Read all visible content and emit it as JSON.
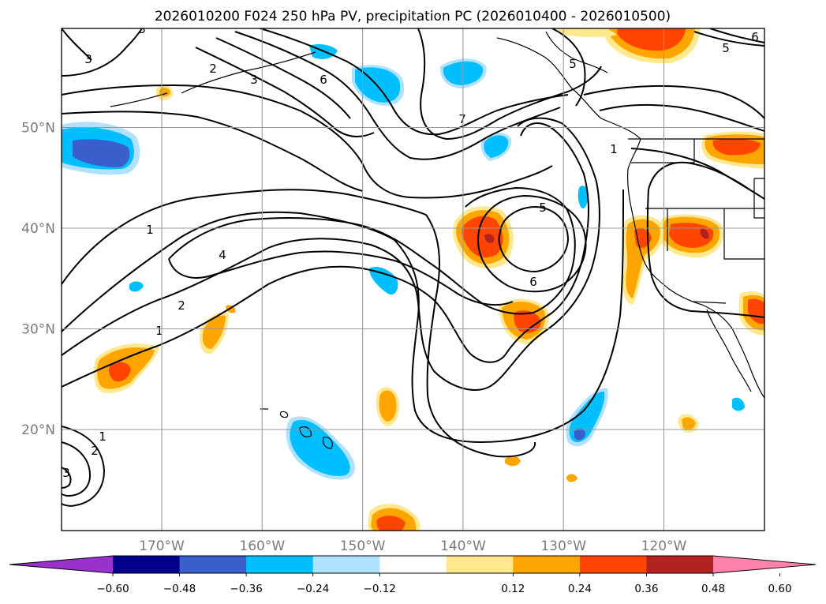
{
  "chart_data": {
    "type": "contour-map",
    "title": "2026010200 F024 250 hPa PV, precipitation PC (2026010400 - 2026010500)",
    "lat_ticks": [
      {
        "value": 50,
        "label": "50°N"
      },
      {
        "value": 40,
        "label": "40°N"
      },
      {
        "value": 30,
        "label": "30°N"
      },
      {
        "value": 20,
        "label": "20°N"
      }
    ],
    "lon_ticks": [
      {
        "value": -170,
        "label": "170°W"
      },
      {
        "value": -160,
        "label": "160°W"
      },
      {
        "value": -150,
        "label": "150°W"
      },
      {
        "value": -140,
        "label": "140°W"
      },
      {
        "value": -130,
        "label": "130°W"
      },
      {
        "value": -120,
        "label": "120°W"
      }
    ],
    "grid": true,
    "colorbar": {
      "ticks": [
        "−0.60",
        "−0.48",
        "−0.36",
        "−0.24",
        "−0.12",
        "0.12",
        "0.24",
        "0.36",
        "0.48",
        "0.60"
      ],
      "colors": [
        "#9932cc",
        "#00008b",
        "#3a5fcd",
        "#00bfff",
        "#b0e2ff",
        "#ffffff",
        "#ffe88e",
        "#ffa500",
        "#ff4500",
        "#b22222",
        "#ff82ab"
      ],
      "extend": "both"
    },
    "pv_contour_labels": [
      "3",
      "3",
      "2",
      "3",
      "6",
      "7",
      "5",
      "5",
      "6",
      "1",
      "5",
      "6",
      "4",
      "1",
      "2",
      "1",
      "1",
      "2",
      "3"
    ]
  }
}
